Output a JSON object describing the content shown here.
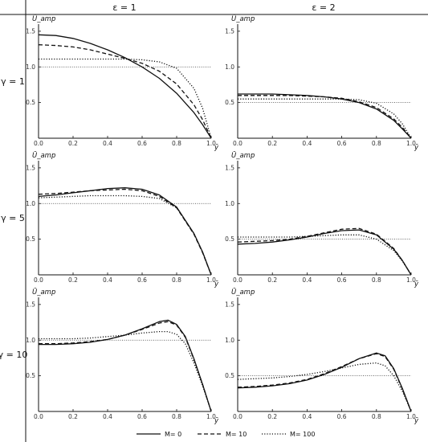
{
  "headers": {
    "columns": [
      "ε = 1",
      "ε = 2"
    ],
    "rows": [
      "γ = 1",
      "γ = 5",
      "γ = 10"
    ]
  },
  "axes": {
    "ylabel": "Ū_amp",
    "xlabel": "ȳ",
    "xticks": [
      "0.0",
      "0.2",
      "0.4",
      "0.6",
      "0.8",
      "1.0"
    ],
    "yticks": [
      "0.5",
      "1.0",
      "1.5"
    ]
  },
  "legend": [
    {
      "label": "M= 0",
      "style": "solid"
    },
    {
      "label": "M= 10",
      "style": "dashed"
    },
    {
      "label": "M= 100",
      "style": "dotted"
    }
  ],
  "chart_data": [
    {
      "type": "line",
      "epsilon": "1",
      "gamma": "1",
      "xlim": [
        0,
        1
      ],
      "ylim": [
        0,
        1.6
      ],
      "reference_line": 1.0,
      "x": [
        0,
        0.1,
        0.2,
        0.3,
        0.4,
        0.5,
        0.6,
        0.7,
        0.8,
        0.9,
        0.95,
        1.0
      ],
      "series": [
        {
          "name": "M= 0",
          "style": "solid",
          "values": [
            1.45,
            1.44,
            1.4,
            1.33,
            1.24,
            1.13,
            1.0,
            0.84,
            0.63,
            0.36,
            0.19,
            0.0
          ]
        },
        {
          "name": "M= 10",
          "style": "dashed",
          "values": [
            1.31,
            1.3,
            1.28,
            1.24,
            1.18,
            1.12,
            1.05,
            0.94,
            0.76,
            0.47,
            0.26,
            0.0
          ]
        },
        {
          "name": "M= 100",
          "style": "dotted",
          "values": [
            1.11,
            1.11,
            1.11,
            1.11,
            1.11,
            1.11,
            1.1,
            1.07,
            0.98,
            0.7,
            0.42,
            0.0
          ]
        }
      ]
    },
    {
      "type": "line",
      "epsilon": "2",
      "gamma": "1",
      "xlim": [
        0,
        1
      ],
      "ylim": [
        0,
        1.6
      ],
      "reference_line": 0.5,
      "x": [
        0,
        0.1,
        0.2,
        0.3,
        0.4,
        0.5,
        0.6,
        0.7,
        0.8,
        0.9,
        0.95,
        1.0
      ],
      "series": [
        {
          "name": "M= 0",
          "style": "solid",
          "values": [
            0.62,
            0.62,
            0.62,
            0.61,
            0.6,
            0.58,
            0.55,
            0.5,
            0.41,
            0.25,
            0.13,
            0.0
          ]
        },
        {
          "name": "M= 10",
          "style": "dashed",
          "values": [
            0.6,
            0.6,
            0.6,
            0.6,
            0.59,
            0.58,
            0.56,
            0.51,
            0.43,
            0.27,
            0.15,
            0.0
          ]
        },
        {
          "name": "M= 100",
          "style": "dotted",
          "values": [
            0.55,
            0.55,
            0.55,
            0.55,
            0.55,
            0.55,
            0.55,
            0.54,
            0.49,
            0.34,
            0.2,
            0.0
          ]
        }
      ]
    },
    {
      "type": "line",
      "epsilon": "1",
      "gamma": "5",
      "xlim": [
        0,
        1
      ],
      "ylim": [
        0,
        1.6
      ],
      "reference_line": 1.0,
      "x": [
        0,
        0.1,
        0.2,
        0.3,
        0.4,
        0.5,
        0.6,
        0.7,
        0.8,
        0.9,
        0.95,
        1.0
      ],
      "series": [
        {
          "name": "M= 0",
          "style": "solid",
          "values": [
            1.1,
            1.12,
            1.15,
            1.18,
            1.21,
            1.22,
            1.2,
            1.12,
            0.95,
            0.58,
            0.32,
            0.0
          ]
        },
        {
          "name": "M= 10",
          "style": "dashed",
          "values": [
            1.13,
            1.14,
            1.16,
            1.18,
            1.19,
            1.2,
            1.18,
            1.1,
            0.94,
            0.57,
            0.31,
            0.0
          ]
        },
        {
          "name": "M= 100",
          "style": "dotted",
          "values": [
            1.08,
            1.09,
            1.1,
            1.11,
            1.11,
            1.11,
            1.1,
            1.07,
            0.94,
            0.58,
            0.32,
            0.0
          ]
        }
      ]
    },
    {
      "type": "line",
      "epsilon": "2",
      "gamma": "5",
      "xlim": [
        0,
        1
      ],
      "ylim": [
        0,
        1.6
      ],
      "reference_line": 0.5,
      "x": [
        0,
        0.1,
        0.2,
        0.3,
        0.4,
        0.5,
        0.6,
        0.7,
        0.8,
        0.9,
        0.95,
        1.0
      ],
      "series": [
        {
          "name": "M= 0",
          "style": "solid",
          "values": [
            0.43,
            0.44,
            0.46,
            0.49,
            0.53,
            0.58,
            0.62,
            0.63,
            0.56,
            0.36,
            0.2,
            0.0
          ]
        },
        {
          "name": "M= 10",
          "style": "dashed",
          "values": [
            0.46,
            0.47,
            0.48,
            0.5,
            0.54,
            0.59,
            0.64,
            0.65,
            0.57,
            0.37,
            0.2,
            0.0
          ]
        },
        {
          "name": "M= 100",
          "style": "dotted",
          "values": [
            0.53,
            0.53,
            0.53,
            0.53,
            0.54,
            0.55,
            0.56,
            0.56,
            0.5,
            0.34,
            0.19,
            0.0
          ]
        }
      ]
    },
    {
      "type": "line",
      "epsilon": "1",
      "gamma": "10",
      "xlim": [
        0,
        1
      ],
      "ylim": [
        0,
        1.6
      ],
      "reference_line": 1.0,
      "x": [
        0,
        0.1,
        0.2,
        0.3,
        0.4,
        0.5,
        0.6,
        0.7,
        0.75,
        0.8,
        0.85,
        0.9,
        0.95,
        1.0
      ],
      "series": [
        {
          "name": "M= 0",
          "style": "solid",
          "values": [
            0.94,
            0.94,
            0.95,
            0.97,
            1.01,
            1.07,
            1.16,
            1.26,
            1.28,
            1.22,
            1.05,
            0.74,
            0.38,
            0.0
          ]
        },
        {
          "name": "M= 10",
          "style": "dashed",
          "values": [
            0.95,
            0.95,
            0.96,
            0.98,
            1.01,
            1.07,
            1.15,
            1.24,
            1.26,
            1.21,
            1.04,
            0.73,
            0.38,
            0.0
          ]
        },
        {
          "name": "M= 100",
          "style": "dotted",
          "values": [
            1.02,
            1.02,
            1.02,
            1.03,
            1.05,
            1.07,
            1.1,
            1.12,
            1.12,
            1.08,
            0.95,
            0.68,
            0.36,
            0.0
          ]
        }
      ]
    },
    {
      "type": "line",
      "epsilon": "2",
      "gamma": "10",
      "xlim": [
        0,
        1
      ],
      "ylim": [
        0,
        1.6
      ],
      "reference_line": 0.5,
      "x": [
        0,
        0.1,
        0.2,
        0.3,
        0.4,
        0.5,
        0.6,
        0.7,
        0.8,
        0.85,
        0.9,
        0.95,
        1.0
      ],
      "series": [
        {
          "name": "M= 0",
          "style": "solid",
          "values": [
            0.33,
            0.34,
            0.36,
            0.39,
            0.44,
            0.52,
            0.62,
            0.74,
            0.82,
            0.78,
            0.6,
            0.32,
            0.0
          ]
        },
        {
          "name": "M= 10",
          "style": "dashed",
          "values": [
            0.34,
            0.35,
            0.37,
            0.4,
            0.45,
            0.53,
            0.63,
            0.74,
            0.81,
            0.77,
            0.59,
            0.31,
            0.0
          ]
        },
        {
          "name": "M= 100",
          "style": "dotted",
          "values": [
            0.45,
            0.46,
            0.47,
            0.49,
            0.52,
            0.56,
            0.61,
            0.66,
            0.68,
            0.64,
            0.5,
            0.28,
            0.0
          ]
        }
      ]
    }
  ]
}
